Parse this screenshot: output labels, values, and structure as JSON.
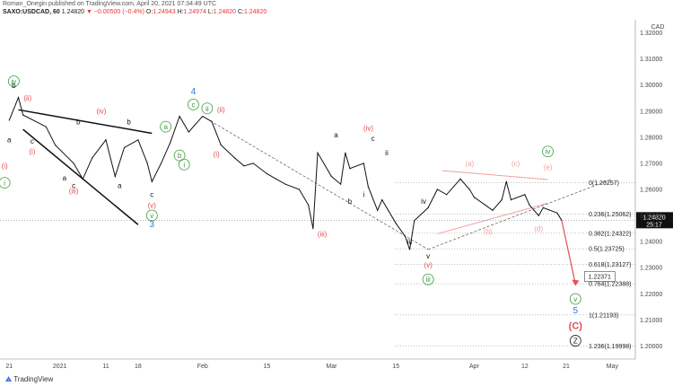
{
  "header": {
    "line1": "Roman_Onegin published on TradingView.com, April 20, 2021 07:34:49 UTC",
    "symbol": "SAXO:USDCAD, 60",
    "price": "1.24820",
    "change_arrow": "▼",
    "change": "−0.00500 (−0.4%)",
    "o_label": "O:",
    "o_val": "1.24943",
    "h_label": "H:",
    "h_val": "1.24974",
    "l_label": "L:",
    "l_val": "1.24820",
    "c_label": "C:",
    "c_val": "1.24820"
  },
  "footer": {
    "brand": "TradingView"
  },
  "colors": {
    "green": "#3a9a3a",
    "red": "#e05050",
    "pink": "#f2a0a0",
    "blue": "#2a7ad8",
    "black": "#111111"
  },
  "chart_data": {
    "type": "line",
    "currency_label": "CAD",
    "ylim": [
      1.195,
      1.325
    ],
    "yticks": [
      "1.32000",
      "1.31000",
      "1.30000",
      "1.29000",
      "1.28000",
      "1.27000",
      "1.26000",
      "1.25000",
      "1.24000",
      "1.23000",
      "1.22000",
      "1.21000",
      "1.20000"
    ],
    "xticks": [
      {
        "label": "21",
        "date": "2020-12-21"
      },
      {
        "label": "2021",
        "date": "2021-01-01"
      },
      {
        "label": "11",
        "date": "2021-01-11"
      },
      {
        "label": "18",
        "date": "2021-01-18"
      },
      {
        "label": "Feb",
        "date": "2021-02-01"
      },
      {
        "label": "15",
        "date": "2021-02-15"
      },
      {
        "label": "Mar",
        "date": "2021-03-01"
      },
      {
        "label": "15",
        "date": "2021-03-15"
      },
      {
        "label": "Apr",
        "date": "2021-04-01"
      },
      {
        "label": "12",
        "date": "2021-04-12"
      },
      {
        "label": "21",
        "date": "2021-04-21"
      },
      {
        "label": "May",
        "date": "2021-05-01"
      }
    ],
    "xrange": [
      "2020-12-19",
      "2021-05-06"
    ],
    "price_series": [
      {
        "date": "2020-12-21",
        "v": 1.2865
      },
      {
        "date": "2020-12-23",
        "v": 1.2952
      },
      {
        "date": "2020-12-24",
        "v": 1.2885
      },
      {
        "date": "2020-12-29",
        "v": 1.284
      },
      {
        "date": "2020-12-31",
        "v": 1.277
      },
      {
        "date": "2021-01-04",
        "v": 1.27
      },
      {
        "date": "2021-01-06",
        "v": 1.264
      },
      {
        "date": "2021-01-08",
        "v": 1.272
      },
      {
        "date": "2021-01-11",
        "v": 1.279
      },
      {
        "date": "2021-01-13",
        "v": 1.265
      },
      {
        "date": "2021-01-15",
        "v": 1.276
      },
      {
        "date": "2021-01-18",
        "v": 1.279
      },
      {
        "date": "2021-01-20",
        "v": 1.27
      },
      {
        "date": "2021-01-21",
        "v": 1.263
      },
      {
        "date": "2021-01-23",
        "v": 1.27
      },
      {
        "date": "2021-01-25",
        "v": 1.278
      },
      {
        "date": "2021-01-27",
        "v": 1.288
      },
      {
        "date": "2021-01-29",
        "v": 1.282
      },
      {
        "date": "2021-02-01",
        "v": 1.288
      },
      {
        "date": "2021-02-03",
        "v": 1.286
      },
      {
        "date": "2021-02-05",
        "v": 1.277
      },
      {
        "date": "2021-02-08",
        "v": 1.272
      },
      {
        "date": "2021-02-10",
        "v": 1.269
      },
      {
        "date": "2021-02-12",
        "v": 1.27
      },
      {
        "date": "2021-02-15",
        "v": 1.266
      },
      {
        "date": "2021-02-17",
        "v": 1.264
      },
      {
        "date": "2021-02-19",
        "v": 1.262
      },
      {
        "date": "2021-02-22",
        "v": 1.26
      },
      {
        "date": "2021-02-24",
        "v": 1.254
      },
      {
        "date": "2021-02-25",
        "v": 1.245
      },
      {
        "date": "2021-02-26",
        "v": 1.274
      },
      {
        "date": "2021-03-01",
        "v": 1.265
      },
      {
        "date": "2021-03-03",
        "v": 1.262
      },
      {
        "date": "2021-03-04",
        "v": 1.274
      },
      {
        "date": "2021-03-05",
        "v": 1.268
      },
      {
        "date": "2021-03-08",
        "v": 1.27
      },
      {
        "date": "2021-03-09",
        "v": 1.261
      },
      {
        "date": "2021-03-11",
        "v": 1.252
      },
      {
        "date": "2021-03-12",
        "v": 1.256
      },
      {
        "date": "2021-03-15",
        "v": 1.247
      },
      {
        "date": "2021-03-17",
        "v": 1.242
      },
      {
        "date": "2021-03-18",
        "v": 1.237
      },
      {
        "date": "2021-03-19",
        "v": 1.248
      },
      {
        "date": "2021-03-22",
        "v": 1.253
      },
      {
        "date": "2021-03-24",
        "v": 1.26
      },
      {
        "date": "2021-03-26",
        "v": 1.258
      },
      {
        "date": "2021-03-29",
        "v": 1.264
      },
      {
        "date": "2021-03-31",
        "v": 1.26
      },
      {
        "date": "2021-04-01",
        "v": 1.257
      },
      {
        "date": "2021-04-05",
        "v": 1.252
      },
      {
        "date": "2021-04-07",
        "v": 1.256
      },
      {
        "date": "2021-04-08",
        "v": 1.263
      },
      {
        "date": "2021-04-09",
        "v": 1.256
      },
      {
        "date": "2021-04-12",
        "v": 1.258
      },
      {
        "date": "2021-04-13",
        "v": 1.254
      },
      {
        "date": "2021-04-14",
        "v": 1.252
      },
      {
        "date": "2021-04-15",
        "v": 1.25
      },
      {
        "date": "2021-04-16",
        "v": 1.253
      },
      {
        "date": "2021-04-19",
        "v": 1.251
      },
      {
        "date": "2021-04-20",
        "v": 1.2482
      }
    ],
    "last_price": {
      "value": 1.2482,
      "label": "1.24820",
      "countdown": "25:17"
    },
    "fib_levels": [
      {
        "ratio": "0",
        "price": 1.26257,
        "label": "0(1.26257)"
      },
      {
        "ratio": "0.236",
        "price": 1.25062,
        "label": "0.236(1.25062)"
      },
      {
        "ratio": "0.382",
        "price": 1.24322,
        "label": "0.382(1.24322)"
      },
      {
        "ratio": "0.5",
        "price": 1.23725,
        "label": "0.5(1.23725)"
      },
      {
        "ratio": "0.618",
        "price": 1.23127,
        "label": "0.618(1.23127)"
      },
      {
        "ratio": "0.764",
        "price": 1.22388,
        "label": "0.764(1.22388)"
      },
      {
        "ratio": "1",
        "price": 1.21193,
        "label": "1(1.21193)"
      },
      {
        "ratio": "1.236",
        "price": 1.19998,
        "label": "1.236(1.19998)"
      }
    ],
    "target_callout": {
      "value": 1.22371,
      "label": "1.22371",
      "date": "2021-04-23"
    },
    "wave_labels": [
      {
        "text": "iv",
        "date": "2020-12-22",
        "v": 1.3004,
        "color": "green",
        "circle": true
      },
      {
        "text": "b",
        "date": "2020-12-22",
        "v": 1.2988,
        "color": "black"
      },
      {
        "text": "a",
        "date": "2020-12-21",
        "v": 1.278,
        "color": "black"
      },
      {
        "text": "i",
        "date": "2020-12-20",
        "v": 1.268,
        "color": "red",
        "paren": true
      },
      {
        "text": "i",
        "date": "2020-12-20",
        "v": 1.2615,
        "color": "green",
        "circle": true
      },
      {
        "text": "ii",
        "date": "2020-12-25",
        "v": 1.294,
        "color": "red",
        "paren": true
      },
      {
        "text": "c",
        "date": "2020-12-26",
        "v": 1.2775,
        "color": "black"
      },
      {
        "text": "i",
        "date": "2020-12-26",
        "v": 1.2735,
        "color": "red",
        "paren": true
      },
      {
        "text": "b",
        "date": "2021-01-05",
        "v": 1.285,
        "color": "black"
      },
      {
        "text": "iv",
        "date": "2021-01-10",
        "v": 1.289,
        "color": "red",
        "paren": true
      },
      {
        "text": "b",
        "date": "2021-01-16",
        "v": 1.285,
        "color": "black"
      },
      {
        "text": "a",
        "date": "2021-01-02",
        "v": 1.2635,
        "color": "black"
      },
      {
        "text": "c",
        "date": "2021-01-04",
        "v": 1.2605,
        "color": "black"
      },
      {
        "text": "iii",
        "date": "2021-01-04",
        "v": 1.2585,
        "color": "red",
        "paren": true
      },
      {
        "text": "a",
        "date": "2021-01-14",
        "v": 1.2605,
        "color": "black"
      },
      {
        "text": "c",
        "date": "2021-01-21",
        "v": 1.257,
        "color": "black"
      },
      {
        "text": "v",
        "date": "2021-01-21",
        "v": 1.253,
        "color": "red",
        "paren": true
      },
      {
        "text": "v",
        "date": "2021-01-21",
        "v": 1.249,
        "color": "green",
        "circle": true
      },
      {
        "text": "3",
        "date": "2021-01-21",
        "v": 1.2455,
        "color": "blue"
      },
      {
        "text": "a",
        "date": "2021-01-24",
        "v": 1.283,
        "color": "green",
        "circle": true
      },
      {
        "text": "b",
        "date": "2021-01-27",
        "v": 1.272,
        "color": "green",
        "circle": true
      },
      {
        "text": "i",
        "date": "2021-01-28",
        "v": 1.2685,
        "color": "green",
        "circle": true
      },
      {
        "text": "4",
        "date": "2021-01-30",
        "v": 1.2965,
        "color": "blue"
      },
      {
        "text": "c",
        "date": "2021-01-30",
        "v": 1.2915,
        "color": "green",
        "circle": true
      },
      {
        "text": "ii",
        "date": "2021-02-02",
        "v": 1.29,
        "color": "green",
        "circle": true
      },
      {
        "text": "ii",
        "date": "2021-02-05",
        "v": 1.2895,
        "color": "red",
        "paren": true
      },
      {
        "text": "i",
        "date": "2021-02-04",
        "v": 1.2725,
        "color": "red",
        "paren": true
      },
      {
        "text": "iii",
        "date": "2021-02-27",
        "v": 1.242,
        "color": "red",
        "paren": true
      },
      {
        "text": "a",
        "date": "2021-03-02",
        "v": 1.28,
        "color": "black"
      },
      {
        "text": "iv",
        "date": "2021-03-09",
        "v": 1.2825,
        "color": "red",
        "paren": true
      },
      {
        "text": "c",
        "date": "2021-03-10",
        "v": 1.2785,
        "color": "black"
      },
      {
        "text": "ii",
        "date": "2021-03-13",
        "v": 1.273,
        "color": "black"
      },
      {
        "text": "i",
        "date": "2021-03-08",
        "v": 1.257,
        "color": "black"
      },
      {
        "text": "b",
        "date": "2021-03-05",
        "v": 1.2545,
        "color": "black"
      },
      {
        "text": "iv",
        "date": "2021-03-21",
        "v": 1.2545,
        "color": "black"
      },
      {
        "text": "iii",
        "date": "2021-03-18",
        "v": 1.239,
        "color": "black"
      },
      {
        "text": "v",
        "date": "2021-03-22",
        "v": 1.2335,
        "color": "black"
      },
      {
        "text": "v",
        "date": "2021-03-22",
        "v": 1.23,
        "color": "red",
        "paren": true
      },
      {
        "text": "iii",
        "date": "2021-03-22",
        "v": 1.2245,
        "color": "green",
        "circle": true
      },
      {
        "text": "a",
        "date": "2021-03-31",
        "v": 1.269,
        "color": "pink",
        "paren": true
      },
      {
        "text": "b",
        "date": "2021-04-04",
        "v": 1.243,
        "color": "pink",
        "paren": true
      },
      {
        "text": "c",
        "date": "2021-04-10",
        "v": 1.269,
        "color": "pink",
        "paren": true
      },
      {
        "text": "iv",
        "date": "2021-04-17",
        "v": 1.2735,
        "color": "green",
        "circle": true
      },
      {
        "text": "e",
        "date": "2021-04-17",
        "v": 1.2675,
        "color": "pink",
        "paren": true
      },
      {
        "text": "d",
        "date": "2021-04-15",
        "v": 1.244,
        "color": "pink",
        "paren": true
      },
      {
        "text": "v",
        "date": "2021-04-23",
        "v": 1.217,
        "color": "green",
        "circle": true
      },
      {
        "text": "5",
        "date": "2021-04-23",
        "v": 1.2125,
        "color": "blue"
      },
      {
        "text": "C",
        "date": "2021-04-23",
        "v": 1.2065,
        "color": "red",
        "paren": true
      },
      {
        "text": "Z",
        "date": "2021-04-23",
        "v": 1.201,
        "color": "black",
        "circle": true
      }
    ],
    "trendlines": [
      {
        "from": {
          "date": "2020-12-23",
          "v": 1.2905
        },
        "to": {
          "date": "2021-01-21",
          "v": 1.2815
        },
        "color": "black",
        "width": 1.5
      },
      {
        "from": {
          "date": "2020-12-24",
          "v": 1.283
        },
        "to": {
          "date": "2021-01-18",
          "v": 1.2465
        },
        "color": "black",
        "width": 1.5
      },
      {
        "from": {
          "date": "2021-03-25",
          "v": 1.2672
        },
        "to": {
          "date": "2021-04-17",
          "v": 1.2638
        },
        "color": "pink",
        "width": 1
      },
      {
        "from": {
          "date": "2021-03-24",
          "v": 1.243
        },
        "to": {
          "date": "2021-04-17",
          "v": 1.2547
        },
        "color": "pink",
        "width": 1
      }
    ],
    "dashed_lines": [
      {
        "from": {
          "date": "2021-02-01",
          "v": 1.288
        },
        "to": {
          "date": "2021-03-22",
          "v": 1.237
        },
        "color": "#555"
      },
      {
        "from": {
          "date": "2021-03-22",
          "v": 1.237
        },
        "to": {
          "date": "2021-05-01",
          "v": 1.264
        },
        "color": "#555"
      }
    ],
    "projection": {
      "from": {
        "date": "2021-04-20",
        "v": 1.2482
      },
      "to": {
        "date": "2021-04-23",
        "v": 1.2237
      },
      "color": "red"
    }
  }
}
